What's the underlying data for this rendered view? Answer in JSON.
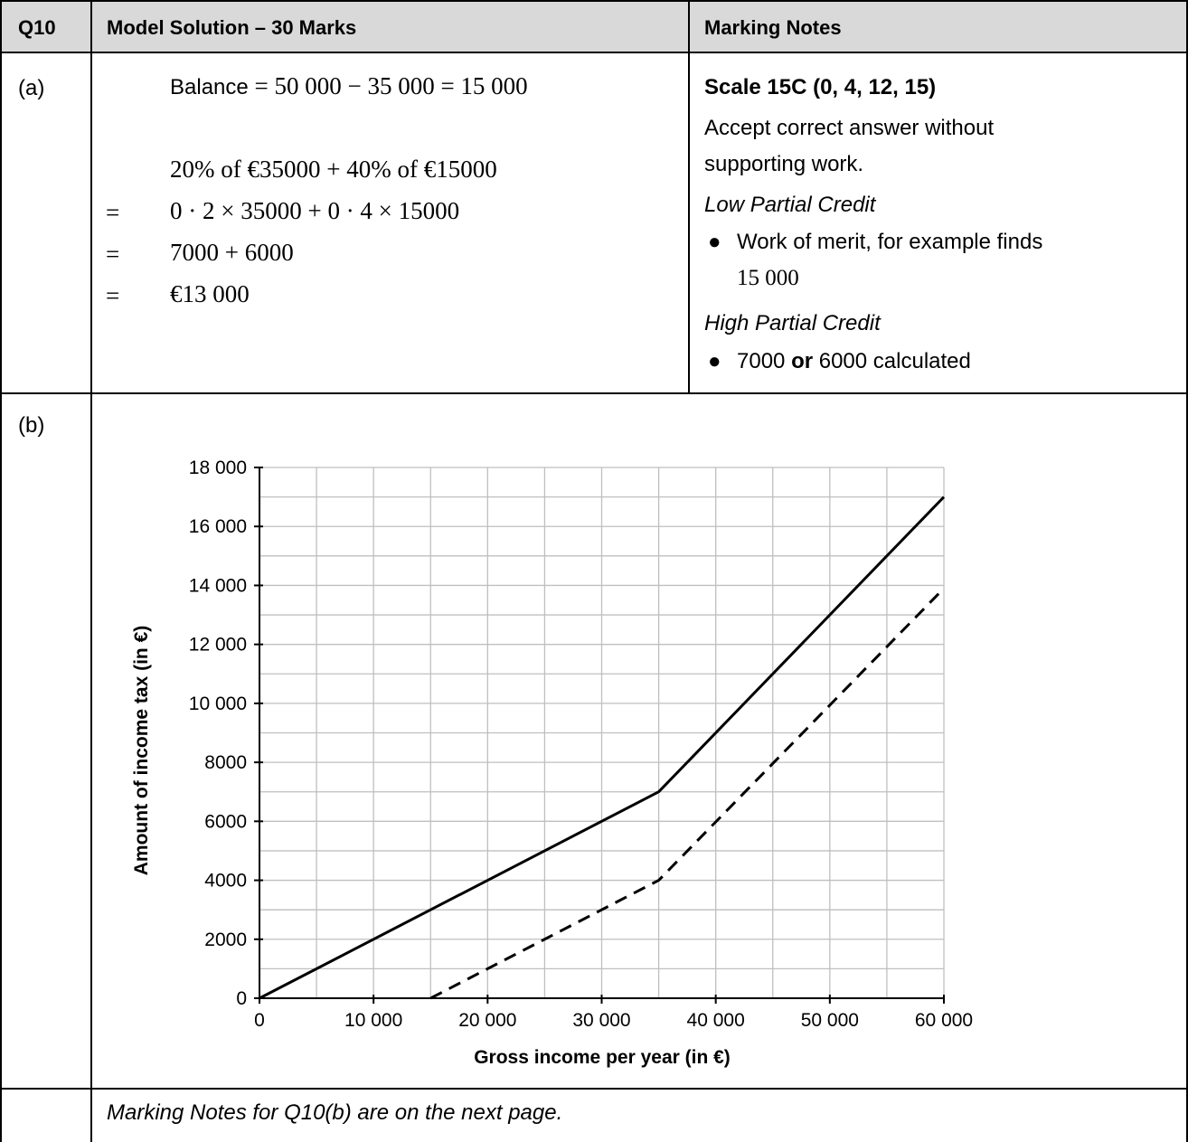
{
  "table": {
    "headers": [
      "Q10",
      "Model Solution – 30 Marks",
      "Marking Notes"
    ],
    "row_a": {
      "part": "(a)",
      "balance_label": "Balance",
      "balance_expr": " = 50 000 − 35 000 = 15 000",
      "line2": "20% of €35000 + 40% of €15000",
      "line3": "0 · 2 × 35000 + 0 · 4 × 15000",
      "line4": "7000 + 6000",
      "line5": "€13 000",
      "eq_sign": "=",
      "notes": {
        "scale": "Scale 15C (0, 4, 12, 15)",
        "accept_1": "Accept correct answer without",
        "accept_2": "supporting work.",
        "low_title": "Low Partial Credit",
        "low_item_1": "Work of merit, for example finds",
        "low_item_2": "15 000",
        "high_title": "High Partial Credit",
        "high_item_a": "7000 ",
        "high_item_or": "or",
        "high_item_b": " 6000 calculated"
      }
    },
    "row_b": {
      "part": "(b)",
      "footer": "Marking Notes for Q10(b) are on the next page."
    }
  },
  "chart_data": {
    "type": "line",
    "xlabel": "Gross income per year (in €)",
    "ylabel": "Amount of income tax (in €)",
    "xlim": [
      0,
      60000
    ],
    "ylim": [
      0,
      18000
    ],
    "x_ticks": [
      "0",
      "10 000",
      "20 000",
      "30 000",
      "40 000",
      "50 000",
      "60 000"
    ],
    "y_ticks": [
      "0",
      "2000",
      "4000",
      "6000",
      "8000",
      "10 000",
      "12 000",
      "14 000",
      "16 000",
      "18 000"
    ],
    "grid": true,
    "series": [
      {
        "style": "solid",
        "color": "#000000",
        "x": [
          0,
          35000,
          60000
        ],
        "y": [
          0,
          7000,
          17000
        ]
      },
      {
        "style": "dashed",
        "color": "#000000",
        "x": [
          15000,
          35000,
          60000
        ],
        "y": [
          0,
          4000,
          13900
        ]
      }
    ]
  }
}
